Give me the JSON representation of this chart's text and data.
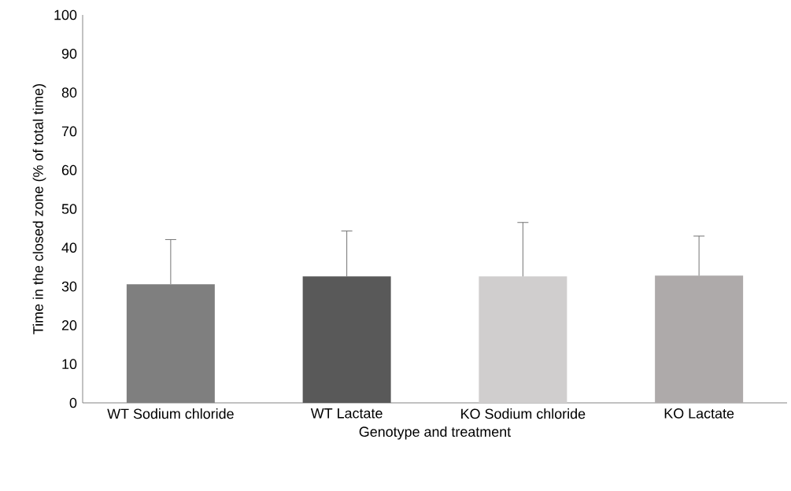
{
  "chart_data": {
    "type": "bar",
    "xlabel": "Genotype and treatment",
    "ylabel": "Time in the closed zone (% of total time)",
    "categories": [
      "WT Sodium chloride",
      "WT Lactate",
      "KO Sodium chloride",
      "KO Lactate"
    ],
    "values": [
      30.6,
      32.6,
      32.6,
      32.8
    ],
    "errors": [
      [
        30.6,
        42.1
      ],
      [
        32.6,
        44.3
      ],
      [
        32.6,
        46.5
      ],
      [
        32.8,
        43.0
      ]
    ],
    "colors": [
      "#7f7f7f",
      "#595959",
      "#d0cece",
      "#aeaaaa"
    ],
    "ylim": [
      0,
      100
    ],
    "yticks": [
      0,
      10,
      20,
      30,
      40,
      50,
      60,
      70,
      80,
      90,
      100
    ],
    "grid": false,
    "legend": false
  }
}
